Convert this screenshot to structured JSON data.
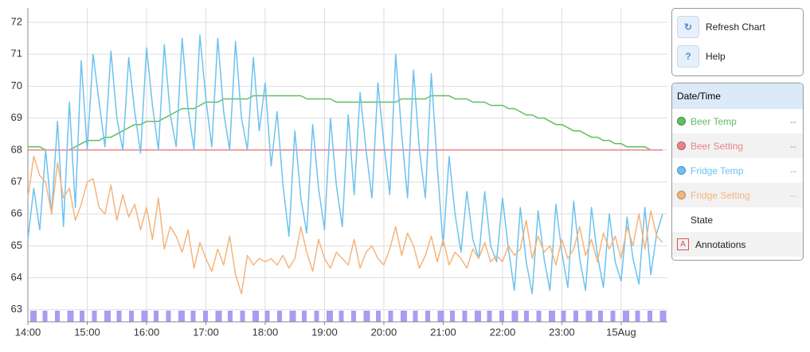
{
  "chart_data": {
    "type": "line",
    "x": [
      14,
      14.1,
      14.2,
      14.3,
      14.4,
      14.5,
      14.6,
      14.7,
      14.8,
      14.9,
      15,
      15.1,
      15.2,
      15.3,
      15.4,
      15.5,
      15.6,
      15.7,
      15.8,
      15.9,
      16,
      16.1,
      16.2,
      16.3,
      16.4,
      16.5,
      16.6,
      16.7,
      16.8,
      16.9,
      17,
      17.1,
      17.2,
      17.3,
      17.4,
      17.5,
      17.6,
      17.7,
      17.8,
      17.9,
      18,
      18.1,
      18.2,
      18.3,
      18.4,
      18.5,
      18.6,
      18.7,
      18.8,
      18.9,
      19,
      19.1,
      19.2,
      19.3,
      19.4,
      19.5,
      19.6,
      19.7,
      19.8,
      19.9,
      20,
      20.1,
      20.2,
      20.3,
      20.4,
      20.5,
      20.6,
      20.7,
      20.8,
      20.9,
      21,
      21.1,
      21.2,
      21.3,
      21.4,
      21.5,
      21.6,
      21.7,
      21.8,
      21.9,
      22,
      22.1,
      22.2,
      22.3,
      22.4,
      22.5,
      22.6,
      22.7,
      22.8,
      22.9,
      23,
      23.1,
      23.2,
      23.3,
      23.4,
      23.5,
      23.6,
      23.7,
      23.8,
      23.9,
      24,
      24.1,
      24.2,
      24.3,
      24.4,
      24.5,
      24.6,
      24.7
    ],
    "series": [
      {
        "name": "Beer Temp",
        "color": "#62bd5f",
        "values": [
          68.1,
          68.1,
          68.1,
          68.0,
          68.0,
          68.0,
          68.0,
          68.0,
          68.1,
          68.2,
          68.3,
          68.3,
          68.3,
          68.4,
          68.4,
          68.5,
          68.6,
          68.7,
          68.8,
          68.8,
          68.9,
          68.9,
          68.9,
          69.0,
          69.1,
          69.2,
          69.3,
          69.3,
          69.3,
          69.4,
          69.5,
          69.5,
          69.5,
          69.6,
          69.6,
          69.6,
          69.6,
          69.6,
          69.7,
          69.7,
          69.7,
          69.7,
          69.7,
          69.7,
          69.7,
          69.7,
          69.7,
          69.6,
          69.6,
          69.6,
          69.6,
          69.6,
          69.5,
          69.5,
          69.5,
          69.5,
          69.5,
          69.5,
          69.5,
          69.5,
          69.5,
          69.5,
          69.5,
          69.6,
          69.6,
          69.6,
          69.6,
          69.6,
          69.7,
          69.7,
          69.7,
          69.7,
          69.6,
          69.6,
          69.6,
          69.5,
          69.5,
          69.5,
          69.4,
          69.4,
          69.4,
          69.3,
          69.3,
          69.2,
          69.1,
          69.1,
          69.0,
          69.0,
          68.9,
          68.8,
          68.8,
          68.7,
          68.6,
          68.6,
          68.5,
          68.4,
          68.4,
          68.3,
          68.3,
          68.2,
          68.2,
          68.1,
          68.1,
          68.1,
          68.1,
          68.0,
          68.0,
          68.0
        ]
      },
      {
        "name": "Beer Setting",
        "color": "#e8848a",
        "values": [
          68,
          68,
          68,
          68,
          68,
          68,
          68,
          68,
          68,
          68,
          68,
          68,
          68,
          68,
          68,
          68,
          68,
          68,
          68,
          68,
          68,
          68,
          68,
          68,
          68,
          68,
          68,
          68,
          68,
          68,
          68,
          68,
          68,
          68,
          68,
          68,
          68,
          68,
          68,
          68,
          68,
          68,
          68,
          68,
          68,
          68,
          68,
          68,
          68,
          68,
          68,
          68,
          68,
          68,
          68,
          68,
          68,
          68,
          68,
          68,
          68,
          68,
          68,
          68,
          68,
          68,
          68,
          68,
          68,
          68,
          68,
          68,
          68,
          68,
          68,
          68,
          68,
          68,
          68,
          68,
          68,
          68,
          68,
          68,
          68,
          68,
          68,
          68,
          68,
          68,
          68,
          68,
          68,
          68,
          68,
          68,
          68,
          68,
          68,
          68,
          68,
          68,
          68,
          68,
          68,
          68,
          68,
          68
        ]
      },
      {
        "name": "Fridge Temp",
        "color": "#6cc2f0",
        "values": [
          65.2,
          66.8,
          65.5,
          68.0,
          66.0,
          68.9,
          65.6,
          69.5,
          66.2,
          70.8,
          68.0,
          71.0,
          69.5,
          68.1,
          71.1,
          69.0,
          68.0,
          70.9,
          69.2,
          67.9,
          71.2,
          69.4,
          68.0,
          71.3,
          69.1,
          68.1,
          71.5,
          69.3,
          68.0,
          71.6,
          69.6,
          68.1,
          71.5,
          69.2,
          68.0,
          71.4,
          69.0,
          68.0,
          70.9,
          68.6,
          70.1,
          67.5,
          69.2,
          66.9,
          65.3,
          68.6,
          66.5,
          65.4,
          68.8,
          66.8,
          65.5,
          69.0,
          66.9,
          65.6,
          69.1,
          66.6,
          69.8,
          68.0,
          66.5,
          70.1,
          68.2,
          66.6,
          71.0,
          68.5,
          66.5,
          70.5,
          68.0,
          66.5,
          70.4,
          67.5,
          65.0,
          67.8,
          66.0,
          64.8,
          66.7,
          65.2,
          64.6,
          66.7,
          65.0,
          64.5,
          66.5,
          64.9,
          63.6,
          66.2,
          64.5,
          63.5,
          66.1,
          64.6,
          63.6,
          66.3,
          64.8,
          63.7,
          66.4,
          64.6,
          63.6,
          66.2,
          64.7,
          63.7,
          66.0,
          64.5,
          63.9,
          65.9,
          64.6,
          63.8,
          66.2,
          64.1,
          65.4,
          66.0
        ]
      },
      {
        "name": "Fridge Setting",
        "color": "#f5b47c",
        "values": [
          66.5,
          67.8,
          67.2,
          67.0,
          66.0,
          67.6,
          66.5,
          66.8,
          65.8,
          66.3,
          67.0,
          67.1,
          66.2,
          66.0,
          66.9,
          65.8,
          66.6,
          65.9,
          66.3,
          65.5,
          66.2,
          65.2,
          66.5,
          64.9,
          65.6,
          65.3,
          64.8,
          65.5,
          64.3,
          65.1,
          64.6,
          64.2,
          64.9,
          64.4,
          65.3,
          64.1,
          63.5,
          64.7,
          64.4,
          64.6,
          64.5,
          64.6,
          64.4,
          64.7,
          64.3,
          64.6,
          65.6,
          64.8,
          64.2,
          65.2,
          64.6,
          64.3,
          64.8,
          64.6,
          64.4,
          65.2,
          64.3,
          64.8,
          65.0,
          64.6,
          64.4,
          64.9,
          65.6,
          64.7,
          65.4,
          65.0,
          64.3,
          64.7,
          65.3,
          64.5,
          65.2,
          64.4,
          64.8,
          64.6,
          64.3,
          64.9,
          64.6,
          65.1,
          64.5,
          64.7,
          64.5,
          65.0,
          64.7,
          64.9,
          65.8,
          64.6,
          65.3,
          64.8,
          65.0,
          64.4,
          65.2,
          64.6,
          64.9,
          65.6,
          64.7,
          65.2,
          64.5,
          65.4,
          64.9,
          65.3,
          64.6,
          65.6,
          65.0,
          66.0,
          64.9,
          66.1,
          65.3,
          65.1
        ]
      }
    ],
    "xlim": [
      14,
      24.78
    ],
    "xticks": [
      {
        "value": 14,
        "label": "14:00"
      },
      {
        "value": 15,
        "label": "15:00"
      },
      {
        "value": 16,
        "label": "16:00"
      },
      {
        "value": 17,
        "label": "17:00"
      },
      {
        "value": 18,
        "label": "18:00"
      },
      {
        "value": 19,
        "label": "19:00"
      },
      {
        "value": 20,
        "label": "20:00"
      },
      {
        "value": 21,
        "label": "21:00"
      },
      {
        "value": 22,
        "label": "22:00"
      },
      {
        "value": 23,
        "label": "23:00"
      },
      {
        "value": 24,
        "label": "15Aug"
      }
    ],
    "ylim": [
      62.62,
      72.45
    ],
    "yticks": [
      63,
      64,
      65,
      66,
      67,
      68,
      69,
      70,
      71,
      72
    ],
    "grid": true,
    "state_color": "#a99df2"
  },
  "buttons": {
    "refresh": "Refresh Chart",
    "help": "Help",
    "help_icon": "?"
  },
  "legend": {
    "header": "Date/Time",
    "current_values": [
      "--",
      "--",
      "--",
      "--"
    ],
    "state": "State",
    "annotations": "Annotations",
    "annotations_icon": "A"
  }
}
